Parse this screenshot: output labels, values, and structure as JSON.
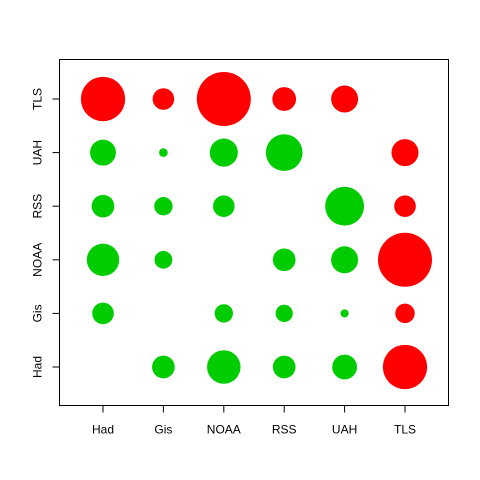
{
  "chart_data": {
    "type": "scatter",
    "subtype": "bubble-matrix",
    "title": "",
    "xlabel": "",
    "ylabel": "",
    "x_categories": [
      "Had",
      "Gis",
      "NOAA",
      "RSS",
      "UAH",
      "TLS"
    ],
    "y_categories": [
      "Had",
      "Gis",
      "NOAA",
      "RSS",
      "UAH",
      "TLS"
    ],
    "grid": false,
    "colors": {
      "positive": "#00cc00",
      "negative": "#ff0000",
      "axis": "#000000"
    },
    "points": [
      {
        "x": "Gis",
        "y": "Had",
        "size": 0.42,
        "sign": "positive"
      },
      {
        "x": "NOAA",
        "y": "Had",
        "size": 0.62,
        "sign": "positive"
      },
      {
        "x": "RSS",
        "y": "Had",
        "size": 0.42,
        "sign": "positive"
      },
      {
        "x": "UAH",
        "y": "Had",
        "size": 0.46,
        "sign": "positive"
      },
      {
        "x": "TLS",
        "y": "Had",
        "size": 0.82,
        "sign": "negative"
      },
      {
        "x": "Had",
        "y": "Gis",
        "size": 0.4,
        "sign": "positive"
      },
      {
        "x": "NOAA",
        "y": "Gis",
        "size": 0.34,
        "sign": "positive"
      },
      {
        "x": "RSS",
        "y": "Gis",
        "size": 0.32,
        "sign": "positive"
      },
      {
        "x": "UAH",
        "y": "Gis",
        "size": 0.15,
        "sign": "positive"
      },
      {
        "x": "TLS",
        "y": "Gis",
        "size": 0.36,
        "sign": "negative"
      },
      {
        "x": "Had",
        "y": "NOAA",
        "size": 0.6,
        "sign": "positive"
      },
      {
        "x": "Gis",
        "y": "NOAA",
        "size": 0.33,
        "sign": "positive"
      },
      {
        "x": "RSS",
        "y": "NOAA",
        "size": 0.42,
        "sign": "positive"
      },
      {
        "x": "UAH",
        "y": "NOAA",
        "size": 0.5,
        "sign": "positive"
      },
      {
        "x": "TLS",
        "y": "NOAA",
        "size": 1.0,
        "sign": "negative"
      },
      {
        "x": "Had",
        "y": "RSS",
        "size": 0.42,
        "sign": "positive"
      },
      {
        "x": "Gis",
        "y": "RSS",
        "size": 0.34,
        "sign": "positive"
      },
      {
        "x": "NOAA",
        "y": "RSS",
        "size": 0.4,
        "sign": "positive"
      },
      {
        "x": "UAH",
        "y": "RSS",
        "size": 0.72,
        "sign": "positive"
      },
      {
        "x": "TLS",
        "y": "RSS",
        "size": 0.4,
        "sign": "negative"
      },
      {
        "x": "Had",
        "y": "UAH",
        "size": 0.48,
        "sign": "positive"
      },
      {
        "x": "Gis",
        "y": "UAH",
        "size": 0.16,
        "sign": "positive"
      },
      {
        "x": "NOAA",
        "y": "UAH",
        "size": 0.52,
        "sign": "positive"
      },
      {
        "x": "RSS",
        "y": "UAH",
        "size": 0.68,
        "sign": "positive"
      },
      {
        "x": "TLS",
        "y": "UAH",
        "size": 0.5,
        "sign": "negative"
      },
      {
        "x": "Had",
        "y": "TLS",
        "size": 0.82,
        "sign": "negative"
      },
      {
        "x": "Gis",
        "y": "TLS",
        "size": 0.4,
        "sign": "negative"
      },
      {
        "x": "NOAA",
        "y": "TLS",
        "size": 1.0,
        "sign": "negative"
      },
      {
        "x": "RSS",
        "y": "TLS",
        "size": 0.44,
        "sign": "negative"
      },
      {
        "x": "UAH",
        "y": "TLS",
        "size": 0.5,
        "sign": "negative"
      }
    ]
  }
}
